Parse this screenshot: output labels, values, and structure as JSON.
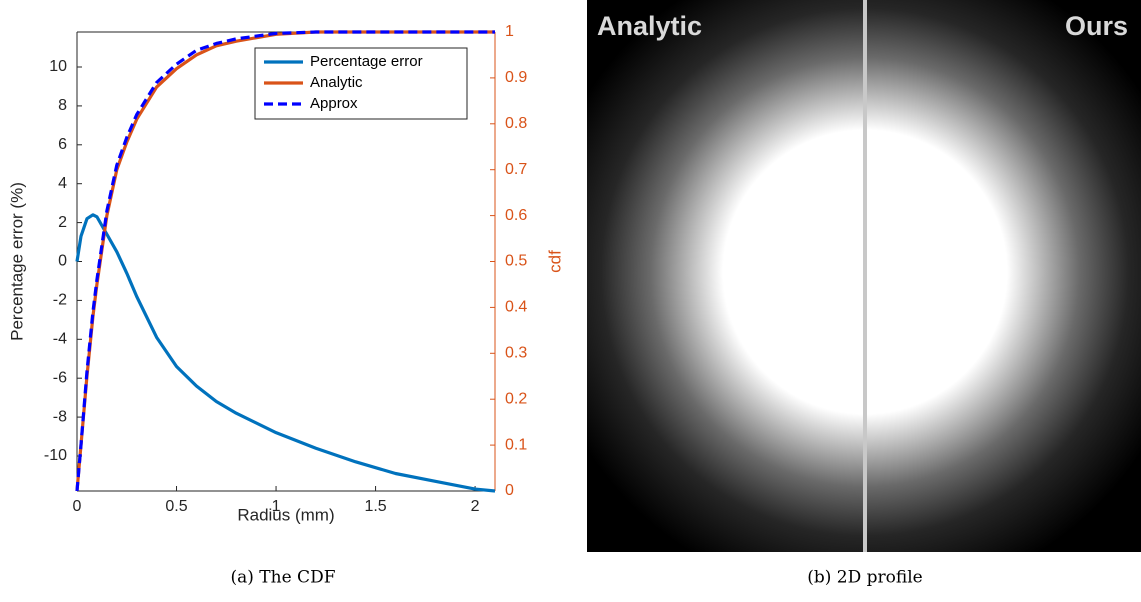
{
  "chart_data": {
    "type": "line",
    "xlabel": "Radius (mm)",
    "ylabel": "Percentage error (%)",
    "y2label": "cdf",
    "x": [
      0,
      0.02,
      0.05,
      0.08,
      0.1,
      0.15,
      0.2,
      0.25,
      0.3,
      0.4,
      0.5,
      0.6,
      0.7,
      0.8,
      1.0,
      1.2,
      1.4,
      1.6,
      1.8,
      2.0,
      2.1
    ],
    "series": [
      {
        "name": "Percentage error",
        "color": "#0072bd",
        "axis": "y",
        "dash": false,
        "values": [
          0,
          1.3,
          2.2,
          2.4,
          2.3,
          1.4,
          0.5,
          -0.6,
          -1.8,
          -3.9,
          -5.4,
          -6.4,
          -7.2,
          -7.8,
          -8.8,
          -9.6,
          -10.3,
          -10.9,
          -11.3,
          -11.7,
          -11.8
        ]
      },
      {
        "name": "Analytic",
        "color": "#d95319",
        "axis": "y2",
        "dash": false,
        "values": [
          0,
          0.1,
          0.25,
          0.38,
          0.45,
          0.6,
          0.7,
          0.76,
          0.81,
          0.88,
          0.92,
          0.95,
          0.97,
          0.98,
          0.995,
          1,
          1,
          1,
          1,
          1,
          1
        ]
      },
      {
        "name": "Approx",
        "color": "#0000ff",
        "axis": "y2",
        "dash": true,
        "values": [
          0,
          0.1,
          0.26,
          0.39,
          0.46,
          0.61,
          0.71,
          0.77,
          0.82,
          0.89,
          0.93,
          0.96,
          0.975,
          0.985,
          0.997,
          1,
          1,
          1,
          1,
          1,
          1
        ]
      }
    ],
    "xlim": [
      0,
      2.1
    ],
    "xticks": [
      0,
      0.5,
      1,
      1.5,
      2
    ],
    "ylim": [
      -11.8,
      11.8
    ],
    "yticks": [
      -10,
      -8,
      -6,
      -4,
      -2,
      0,
      2,
      4,
      6,
      8,
      10
    ],
    "y2lim": [
      0,
      1
    ],
    "y2ticks": [
      0,
      0.1,
      0.2,
      0.3,
      0.4,
      0.5,
      0.6,
      0.7,
      0.8,
      0.9,
      1
    ],
    "y2color": "#d95319",
    "legend": "upper right"
  },
  "caption_a": "(a) The CDF",
  "image": {
    "left_label": "Analytic",
    "right_label": "Ours",
    "caption": "(b) 2D profile"
  }
}
